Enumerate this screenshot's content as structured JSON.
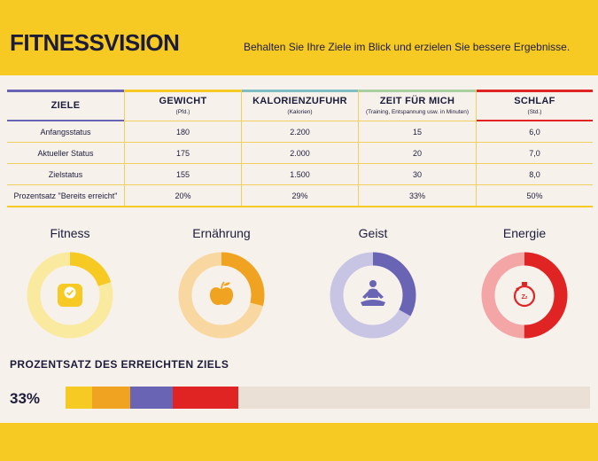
{
  "header": {
    "title": "FITNESSVISION",
    "subtitle": "Behalten Sie Ihre Ziele im Blick und erzielen Sie bessere Ergebnisse."
  },
  "colors": {
    "yellow": "#f6c923",
    "orange": "#f0a320",
    "purple": "#6a64b5",
    "red": "#e02424",
    "navy": "#1c1c3a",
    "background": "#f7f1ec"
  },
  "table": {
    "columns": [
      {
        "title": "ZIELE",
        "sub": ""
      },
      {
        "title": "GEWICHT",
        "sub": "(Pfd.)"
      },
      {
        "title": "KALORIENZUFUHR",
        "sub": "(Kalorien)"
      },
      {
        "title": "ZEIT FÜR MICH",
        "sub": "(Training, Entspannung usw. in Minuten)"
      },
      {
        "title": "SCHLAF",
        "sub": "(Std.)"
      }
    ],
    "rows": [
      {
        "label": "Anfangsstatus",
        "values": [
          "180",
          "2.200",
          "15",
          "6,0"
        ]
      },
      {
        "label": "Aktueller Status",
        "values": [
          "175",
          "2.000",
          "20",
          "7,0"
        ]
      },
      {
        "label": "Zielstatus",
        "values": [
          "155",
          "1.500",
          "30",
          "8,0"
        ]
      },
      {
        "label": "Prozentsatz \"Bereits erreicht\"",
        "values": [
          "20%",
          "29%",
          "33%",
          "50%"
        ]
      }
    ]
  },
  "donuts": [
    {
      "label": "Fitness",
      "icon": "scale-icon",
      "fraction": 0.2,
      "color": "#f6c923",
      "track": "#faeaa0"
    },
    {
      "label": "Ernährung",
      "icon": "apple-icon",
      "fraction": 0.29,
      "color": "#f0a320",
      "track": "#f8d8a0"
    },
    {
      "label": "Geist",
      "icon": "meditation-icon",
      "fraction": 0.33,
      "color": "#6a64b5",
      "track": "#c8c4e4"
    },
    {
      "label": "Energie",
      "icon": "stopwatch-icon",
      "fraction": 0.5,
      "color": "#e02424",
      "track": "#f4a6a6"
    }
  ],
  "progress": {
    "heading": "PROZENTSATZ DES ERREICHTEN ZIELS",
    "percent_label": "33%",
    "fraction": 0.33,
    "segments": [
      {
        "name": "fitness",
        "color": "#f6c923",
        "share": 0.2
      },
      {
        "name": "ernaehrung",
        "color": "#f0a320",
        "share": 0.29
      },
      {
        "name": "geist",
        "color": "#6a64b5",
        "share": 0.33
      },
      {
        "name": "energie",
        "color": "#e02424",
        "share": 0.5
      }
    ]
  }
}
